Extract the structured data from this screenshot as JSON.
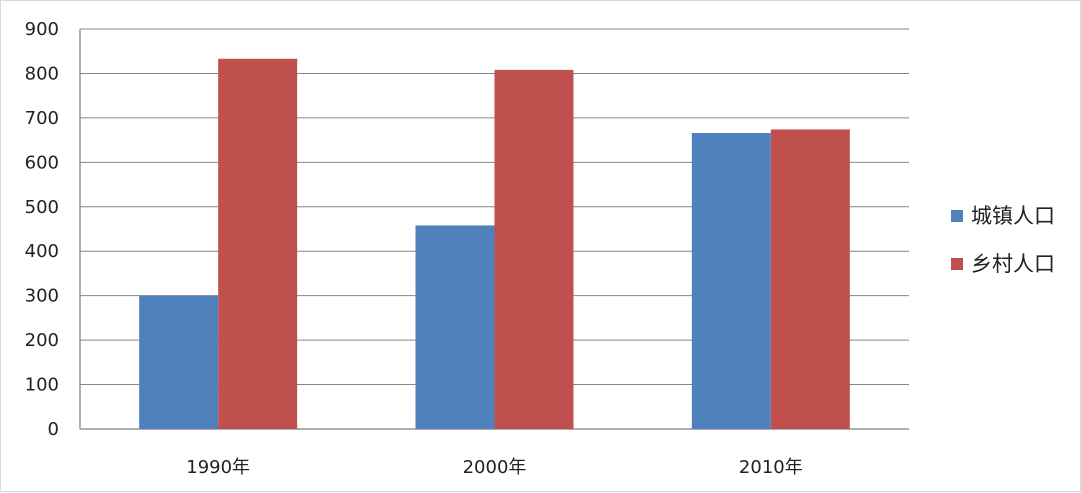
{
  "chart_data": {
    "type": "bar",
    "categories": [
      "1990年",
      "2000年",
      "2010年"
    ],
    "series": [
      {
        "name": "城镇人口",
        "color": "#4f81bd",
        "values": [
          300,
          458,
          666
        ]
      },
      {
        "name": "乡村人口",
        "color": "#c0504d",
        "values": [
          833,
          808,
          674
        ]
      }
    ],
    "ylim": [
      0,
      900
    ],
    "yticks": [
      "0",
      "100",
      "200",
      "300",
      "400",
      "500",
      "600",
      "700",
      "800",
      "900"
    ],
    "grid": true,
    "legend": "right"
  }
}
